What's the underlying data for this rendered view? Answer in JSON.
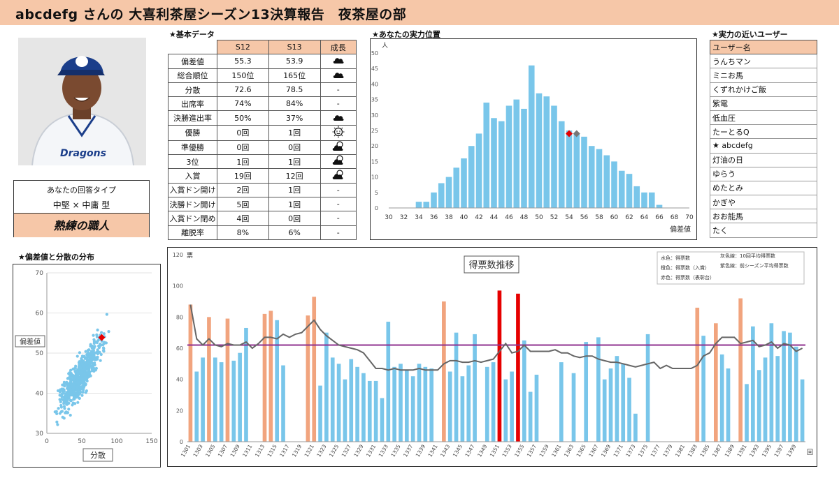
{
  "header": {
    "title": "abcdefg さんの 大喜利茶屋シーズン13決算報告　夜茶屋の部"
  },
  "answer_type": {
    "label": "あなたの回答タイプ",
    "value": "中堅 × 中庸 型",
    "title": "熟練の職人"
  },
  "basic": {
    "heading": "★基本データ",
    "columns": [
      "",
      "S12",
      "S13",
      "成長"
    ],
    "rows": [
      {
        "label": "偏差値",
        "s12": "55.3",
        "s13": "53.9",
        "growth": "cloud"
      },
      {
        "label": "総合順位",
        "s12": "150位",
        "s13": "165位",
        "growth": "cloud"
      },
      {
        "label": "分散",
        "s12": "72.6",
        "s13": "78.5",
        "growth": "-"
      },
      {
        "label": "出席率",
        "s12": "74%",
        "s13": "84%",
        "growth": "-"
      },
      {
        "label": "決勝進出率",
        "s12": "50%",
        "s13": "37%",
        "growth": "cloud"
      },
      {
        "label": "優勝",
        "s12": "0回",
        "s13": "1回",
        "growth": "sun"
      },
      {
        "label": "準優勝",
        "s12": "0回",
        "s13": "0回",
        "growth": "partly-cloudy"
      },
      {
        "label": "3位",
        "s12": "1回",
        "s13": "1回",
        "growth": "partly-cloudy"
      },
      {
        "label": "入賞",
        "s12": "19回",
        "s13": "12回",
        "growth": "partly-cloudy"
      },
      {
        "label": "入賞ドン開け",
        "s12": "2回",
        "s13": "1回",
        "growth": "-"
      },
      {
        "label": "決勝ドン開け",
        "s12": "5回",
        "s13": "1回",
        "growth": "-"
      },
      {
        "label": "入賞ドン閉め",
        "s12": "4回",
        "s13": "0回",
        "growth": "-"
      },
      {
        "label": "離脱率",
        "s12": "8%",
        "s13": "6%",
        "growth": "-"
      }
    ]
  },
  "users": {
    "heading": "★実力の近いユーザー",
    "header": "ユーザー名",
    "list": [
      "うんちマン",
      "ミニお馬",
      "くずれかけご飯",
      "紫電",
      "低血圧",
      "たーとるQ",
      "★ abcdefg",
      "灯油の日",
      "ゆらう",
      "めたとみ",
      "かぎや",
      "おお能馬",
      "たく"
    ]
  },
  "colors": {
    "accent": "#f6c7a8",
    "bar_blue": "#79c6ea",
    "bar_orange": "#f1a47e",
    "bar_red": "#e60000",
    "avg_line": "#666666",
    "season_line": "#8e2f8e",
    "marker_red": "#e60000"
  },
  "chart_data": [
    {
      "type": "bar",
      "heading": "★あなたの実力位置",
      "ylabel": "人",
      "xlabel": "偏差値",
      "ylim": [
        0,
        50
      ],
      "yticks": [
        0,
        5,
        10,
        15,
        20,
        25,
        30,
        35,
        40,
        45,
        50
      ],
      "xlim": [
        30,
        70
      ],
      "xticks": [
        30,
        32,
        34,
        36,
        38,
        40,
        42,
        44,
        46,
        48,
        50,
        52,
        54,
        56,
        58,
        60,
        62,
        64,
        66,
        68,
        70
      ],
      "x": [
        34,
        35,
        36,
        37,
        38,
        39,
        40,
        41,
        42,
        43,
        44,
        45,
        46,
        47,
        48,
        49,
        50,
        51,
        52,
        53,
        54,
        55,
        56,
        57,
        58,
        59,
        60,
        61,
        62,
        63,
        64,
        65,
        66
      ],
      "values": [
        2,
        2,
        5,
        8,
        10,
        13,
        16,
        20,
        24,
        34,
        29,
        28,
        33,
        35,
        32,
        46,
        37,
        36,
        33,
        28,
        25,
        24,
        23,
        20,
        19,
        17,
        15,
        12,
        11,
        7,
        5,
        5,
        1
      ],
      "markers": [
        {
          "name": "S13",
          "x": 54,
          "y": 24,
          "color": "#e60000"
        },
        {
          "name": "S12",
          "x": 55,
          "y": 24,
          "color": "#777777"
        }
      ]
    },
    {
      "type": "scatter",
      "heading": "★偏差値と分散の分布",
      "xlabel": "分散",
      "ylabel": "偏差値",
      "xlim": [
        0,
        150
      ],
      "ylim": [
        30,
        70
      ],
      "xticks": [
        0,
        50,
        100,
        150
      ],
      "yticks": [
        30,
        40,
        50,
        60,
        70
      ],
      "highlight": {
        "x": 78.5,
        "y": 53.9,
        "color": "#e60000"
      }
    },
    {
      "type": "bar",
      "title": "得票数推移",
      "ylabel": "票",
      "xlabel": "回",
      "ylim": [
        0,
        120
      ],
      "yticks": [
        0,
        20,
        40,
        60,
        80,
        100,
        120
      ],
      "x_start": 1301,
      "x_end": 1400,
      "legend": [
        "水色：得票数",
        "橙色：得票数（入賞）",
        "赤色：得票数（表彰台）",
        "灰色線：10回平均得票数",
        "紫色線：前シーズン平均得票数"
      ],
      "season_average": 62,
      "values": [
        88,
        45,
        54,
        80,
        54,
        51,
        79,
        52,
        57,
        73,
        0,
        0,
        82,
        84,
        78,
        49,
        0,
        0,
        0,
        81,
        93,
        36,
        70,
        54,
        50,
        40,
        53,
        48,
        44,
        39,
        39,
        28,
        77,
        48,
        50,
        46,
        42,
        50,
        48,
        47,
        0,
        90,
        45,
        70,
        42,
        49,
        69,
        0,
        48,
        51,
        97,
        40,
        45,
        95,
        65,
        32,
        43,
        0,
        0,
        0,
        51,
        0,
        44,
        0,
        64,
        0,
        67,
        40,
        47,
        55,
        50,
        41,
        18,
        0,
        69,
        0,
        0,
        0,
        0,
        0,
        0,
        0,
        86,
        68,
        0,
        76,
        56,
        47,
        0,
        92,
        37,
        74,
        46,
        54,
        76,
        55,
        71,
        70,
        61,
        40
      ],
      "kinds": [
        "o",
        "b",
        "b",
        "o",
        "b",
        "b",
        "o",
        "b",
        "b",
        "b",
        "n",
        "n",
        "o",
        "o",
        "b",
        "b",
        "n",
        "n",
        "n",
        "o",
        "o",
        "b",
        "b",
        "b",
        "b",
        "b",
        "b",
        "b",
        "b",
        "b",
        "b",
        "b",
        "b",
        "b",
        "b",
        "b",
        "b",
        "b",
        "b",
        "b",
        "n",
        "o",
        "b",
        "b",
        "b",
        "b",
        "b",
        "n",
        "b",
        "b",
        "r",
        "b",
        "b",
        "r",
        "b",
        "b",
        "b",
        "n",
        "n",
        "n",
        "b",
        "n",
        "b",
        "n",
        "b",
        "n",
        "b",
        "b",
        "b",
        "b",
        "b",
        "b",
        "b",
        "n",
        "b",
        "n",
        "o",
        "n",
        "b",
        "n",
        "n",
        "n",
        "o",
        "b",
        "n",
        "o",
        "b",
        "b",
        "n",
        "o",
        "b",
        "b",
        "b",
        "b",
        "b",
        "b",
        "b",
        "b",
        "b",
        "b"
      ],
      "avg10": [
        88,
        66,
        62,
        66,
        62,
        61,
        63,
        62,
        62,
        64,
        60,
        63,
        67,
        67,
        66,
        69,
        67,
        69,
        70,
        74,
        78,
        72,
        68,
        65,
        62,
        61,
        60,
        59,
        57,
        52,
        47,
        47,
        46,
        47,
        46,
        46,
        46,
        47,
        46,
        46,
        46,
        50,
        52,
        52,
        51,
        51,
        52,
        51,
        52,
        53,
        58,
        63,
        57,
        58,
        62,
        58,
        58,
        58,
        58,
        59,
        57,
        57,
        55,
        54,
        55,
        55,
        53,
        52,
        51,
        51,
        50,
        49,
        48,
        49,
        50,
        51,
        47,
        49,
        47,
        47,
        47,
        47,
        49,
        55,
        57,
        63,
        67,
        67,
        67,
        63,
        64,
        65,
        61,
        62,
        64,
        60,
        63,
        62,
        58,
        60
      ],
      "xtick_labels": [
        "1301",
        "1303",
        "1305",
        "1307",
        "1309",
        "1311",
        "1313",
        "1315",
        "1317",
        "1319",
        "1321",
        "1323",
        "1325",
        "1327",
        "1329",
        "1331",
        "1333",
        "1335",
        "1337",
        "1339",
        "1341",
        "1343",
        "1345",
        "1347",
        "1349",
        "1351",
        "1353",
        "1355",
        "1357",
        "1359",
        "1361",
        "1363",
        "1365",
        "1367",
        "1369",
        "1371",
        "1373",
        "1375",
        "1377",
        "1379",
        "1381",
        "1383",
        "1385",
        "1387",
        "1389",
        "1391",
        "1393",
        "1395",
        "1397",
        "1399"
      ]
    }
  ]
}
